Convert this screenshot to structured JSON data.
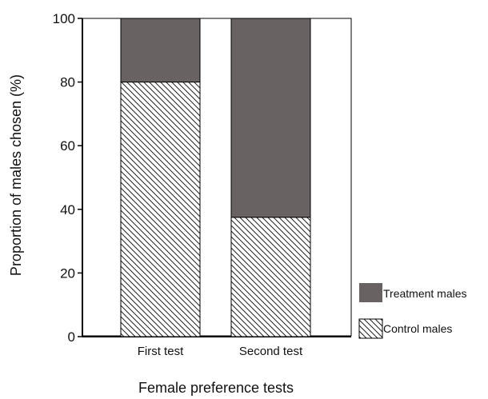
{
  "chart_data": {
    "type": "bar",
    "stacked": true,
    "categories": [
      "First test",
      "Second test"
    ],
    "series": [
      {
        "name": "Control males",
        "values": [
          80,
          37.5
        ],
        "fill": "hatch"
      },
      {
        "name": "Treatment males",
        "values": [
          20,
          62.5
        ],
        "fill": "#686262"
      }
    ],
    "xlabel": "Female preference tests",
    "ylabel": "Proportion of males chosen (%)",
    "ylim": [
      0,
      100
    ],
    "yticks": [
      0,
      20,
      40,
      60,
      80,
      100
    ],
    "grid": false,
    "legend": {
      "placement": "right-bottom",
      "entries": [
        "Treatment males",
        "Control males"
      ]
    }
  }
}
